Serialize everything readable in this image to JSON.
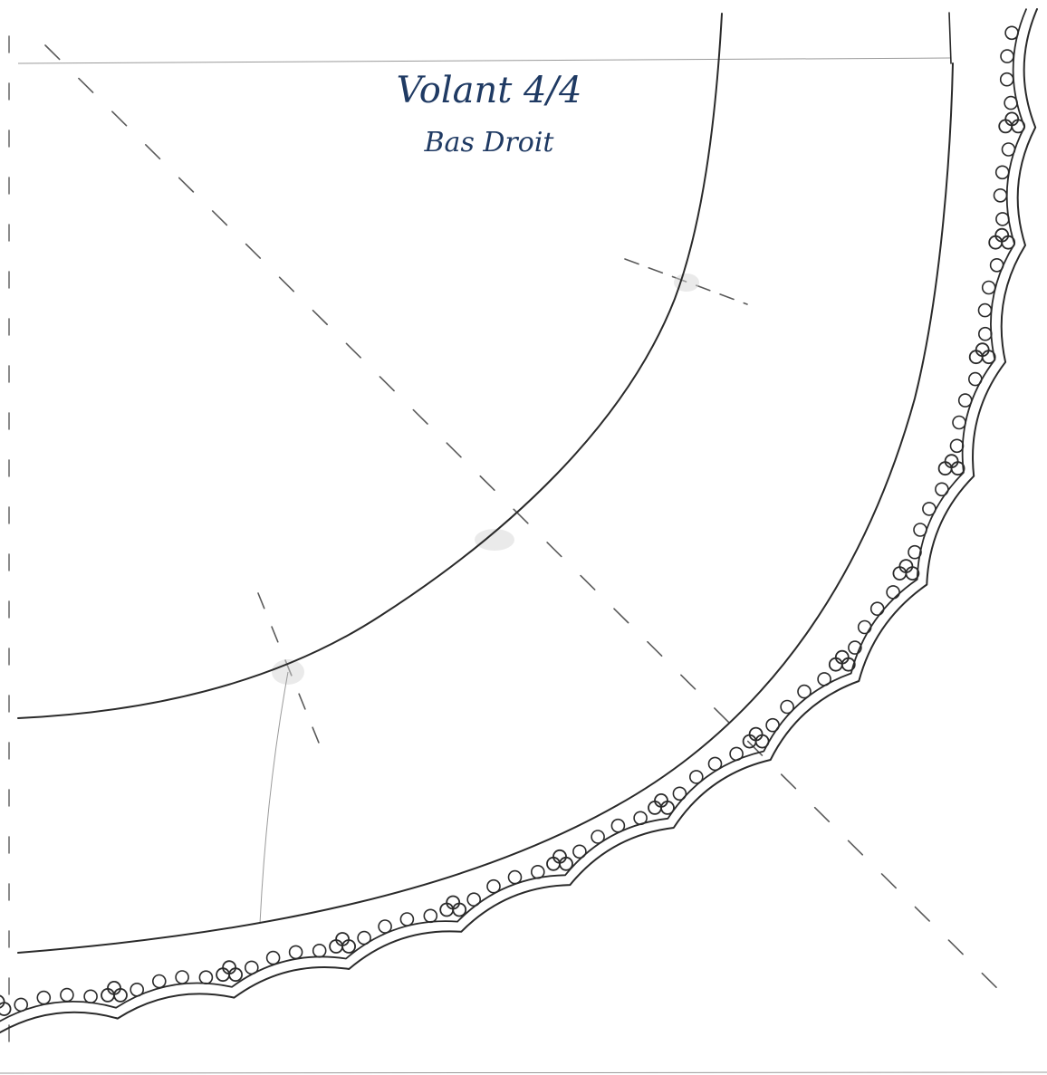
{
  "title": {
    "main": "Volant 4/4",
    "sub": "Bas Droit"
  },
  "colors": {
    "title_ink": "#1f3a63",
    "pencil": "#2a2a2a",
    "paper": "#ffffff"
  }
}
